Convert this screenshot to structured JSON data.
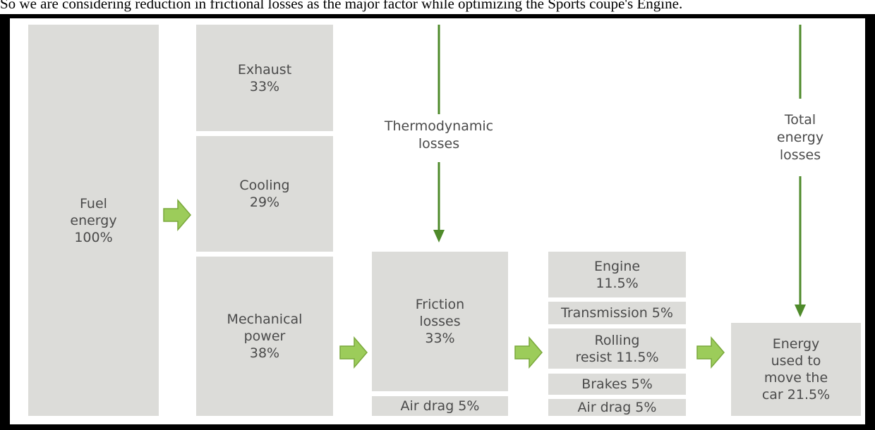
{
  "caption": "So we are considering reduction in frictional losses as the major factor while optimizing the Sports coupe's Engine.",
  "boxes": [
    {
      "lines": [
        "Fuel",
        "energy",
        "100%"
      ]
    },
    {
      "lines": [
        "Exhaust",
        "33%"
      ]
    },
    {
      "lines": [
        "Cooling",
        "29%"
      ]
    },
    {
      "lines": [
        "Mechanical",
        "power",
        "38%"
      ]
    },
    {
      "lines": [
        "Friction",
        "losses",
        "33%"
      ]
    },
    {
      "lines": [
        "Air drag 5%"
      ]
    },
    {
      "lines": [
        "Engine",
        "11.5%"
      ]
    },
    {
      "lines": [
        "Transmission 5%"
      ]
    },
    {
      "lines": [
        "Rolling",
        "resist 11.5%"
      ]
    },
    {
      "lines": [
        "Brakes 5%"
      ]
    },
    {
      "lines": [
        "Air drag 5%"
      ]
    },
    {
      "lines": [
        "Energy",
        "used to",
        "move the",
        "car 21.5%"
      ]
    }
  ],
  "annotations": [
    {
      "lines": [
        "Thermodynamic",
        "losses"
      ]
    },
    {
      "lines": [
        "Total",
        "energy",
        "losses"
      ]
    }
  ]
}
